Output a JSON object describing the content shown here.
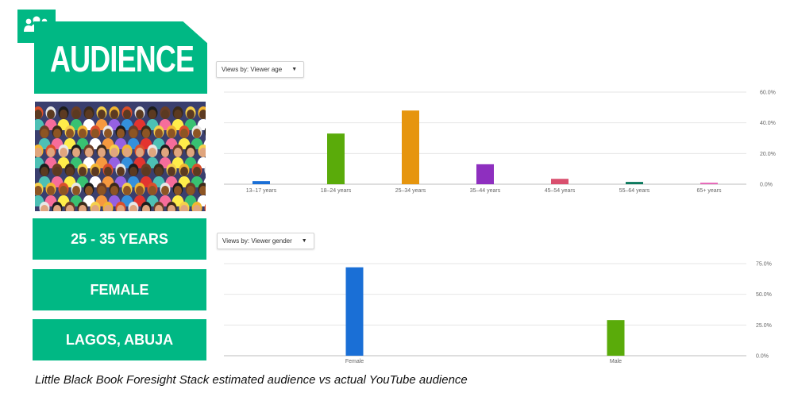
{
  "header": {
    "title": "AUDIENCE",
    "icon": "users-icon",
    "brand_color": "#00b884"
  },
  "info_boxes": [
    {
      "label": "25 - 35 YEARS"
    },
    {
      "label": "FEMALE"
    },
    {
      "label": "LAGOS, ABUJA"
    }
  ],
  "caption": "Little Black Book Foresight Stack estimated audience vs actual YouTube audience",
  "dropdowns": {
    "age": "Views by: Viewer age",
    "gender": "Views by: Viewer gender"
  },
  "chart_data": [
    {
      "type": "bar",
      "categories": [
        "13–17 years",
        "18–24 years",
        "25–34 years",
        "35–44 years",
        "45–54 years",
        "55–64 years",
        "65+ years"
      ],
      "values": [
        2,
        33,
        48,
        13,
        3.5,
        1.5,
        1
      ],
      "colors": [
        "#1a6fd6",
        "#5aab0a",
        "#e6950e",
        "#8e2fbf",
        "#d94f6e",
        "#0c7a5e",
        "#e667b8"
      ],
      "ylim": [
        0,
        60
      ],
      "yticks": [
        "0.0%",
        "20.0%",
        "40.0%",
        "60.0%"
      ],
      "grid": true
    },
    {
      "type": "bar",
      "categories": [
        "Female",
        "Male"
      ],
      "values": [
        72,
        29
      ],
      "colors": [
        "#1a6fd6",
        "#5aab0a"
      ],
      "ylim": [
        0,
        75
      ],
      "yticks": [
        "0.0%",
        "25.0%",
        "50.0%",
        "75.0%"
      ],
      "grid": true
    }
  ]
}
